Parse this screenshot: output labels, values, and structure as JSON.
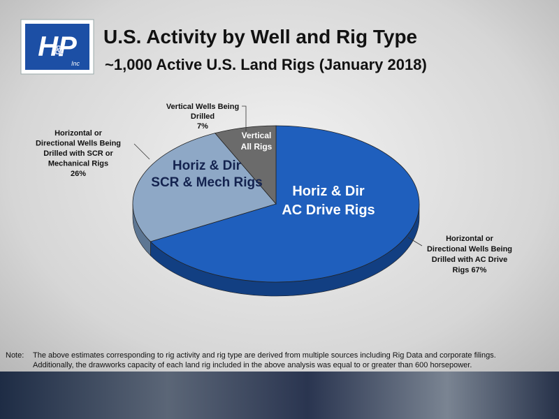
{
  "logo": {
    "text": "HP",
    "amp": "&",
    "inc": "Inc"
  },
  "chart_data": {
    "type": "pie",
    "title": "U.S. Activity by Well and Rig Type",
    "subtitle": "~1,000 Active U.S. Land Rigs (January 2018)",
    "categories": [
      [
        "Horizontal or",
        "Directional Wells Being",
        "Drilled with AC Drive",
        "Rigs"
      ],
      [
        "Horizontal or",
        "Directional Wells Being",
        "Drilled with SCR or",
        "Mechanical Rigs"
      ],
      [
        "Vertical Wells Being",
        "Drilled"
      ]
    ],
    "values": [
      67,
      26,
      7
    ],
    "value_labels": [
      "67%",
      "26%",
      "7%"
    ],
    "slice_labels": [
      [
        "Horiz & Dir",
        "AC Drive Rigs"
      ],
      [
        "Horiz & Dir",
        "SCR & Mech Rigs"
      ],
      [
        "Vertical",
        "All Rigs"
      ]
    ],
    "colors": [
      "#1f5fbd",
      "#8ea8c6",
      "#6b6b6b"
    ]
  },
  "note": {
    "label": "Note:",
    "lines": [
      "The above estimates corresponding to rig activity and rig type are derived from multiple sources including Rig Data and corporate filings.",
      "Additionally, the drawworks capacity of each land rig included in the above analysis was equal to or greater than 600 horsepower."
    ]
  }
}
